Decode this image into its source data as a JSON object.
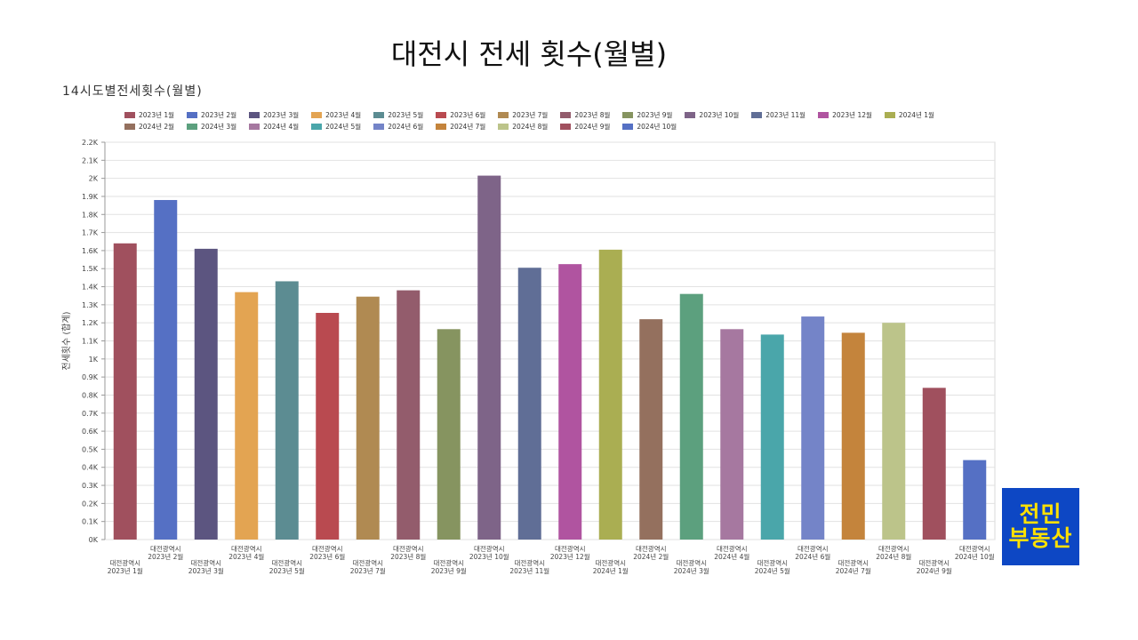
{
  "slide": {
    "title": "대전시 전세 횟수(월별)"
  },
  "logo": {
    "line1": "전민",
    "line2": "부동산"
  },
  "chart_data": {
    "type": "bar",
    "title": "14시도별전세횟수(월별)",
    "ylabel": "전세횟수 (합계)",
    "xlabel": "",
    "ylim": [
      0,
      2200
    ],
    "yticks": [
      "0K",
      "0.1K",
      "0.2K",
      "0.3K",
      "0.4K",
      "0.5K",
      "0.6K",
      "0.7K",
      "0.8K",
      "0.9K",
      "1K",
      "1.1K",
      "1.2K",
      "1.3K",
      "1.4K",
      "1.5K",
      "1.6K",
      "1.7K",
      "1.8K",
      "1.9K",
      "2K",
      "2.1K",
      "2.2K"
    ],
    "grid": true,
    "legend_position": "top",
    "category_region": "대전광역시",
    "categories": [
      "2023년 1월",
      "2023년 2월",
      "2023년 3월",
      "2023년 4월",
      "2023년 5월",
      "2023년 6월",
      "2023년 7월",
      "2023년 8월",
      "2023년 9월",
      "2023년 10월",
      "2023년 11월",
      "2023년 12월",
      "2024년 1월",
      "2024년 2월",
      "2024년 3월",
      "2024년 4월",
      "2024년 5월",
      "2024년 6월",
      "2024년 7월",
      "2024년 8월",
      "2024년 9월",
      "2024년 10월"
    ],
    "values": [
      1640,
      1880,
      1610,
      1370,
      1430,
      1255,
      1345,
      1380,
      1165,
      2015,
      1505,
      1525,
      1605,
      1220,
      1360,
      1165,
      1135,
      1235,
      1145,
      1200,
      840,
      440
    ],
    "colors": [
      "#a0505e",
      "#5570c4",
      "#5c5580",
      "#e3a452",
      "#5c8c92",
      "#b94a50",
      "#b08a52",
      "#935c6c",
      "#869460",
      "#7e6488",
      "#606e96",
      "#b054a0",
      "#aaae52",
      "#94705e",
      "#5ca07e",
      "#a678a0",
      "#4aa6aa",
      "#7484c8",
      "#c4843c",
      "#bcc48a",
      "#a0505e",
      "#5570c4"
    ]
  }
}
